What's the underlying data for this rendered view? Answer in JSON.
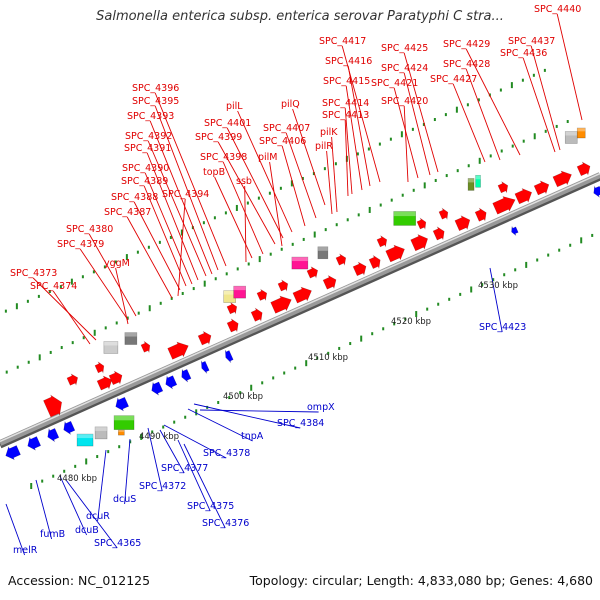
{
  "title": "Salmonella enterica subsp. enterica serovar Paratyphi C stra...",
  "footer": {
    "accession": "Accession: NC_012125",
    "summary": "Topology: circular; Length: 4,833,080 bp; Genes: 4,680"
  },
  "colors": {
    "forward_label": "#e00000",
    "reverse_label": "#0000cc",
    "forward_gene": "#ff0000",
    "reverse_gene": "#0000ff",
    "backbone": "#999999",
    "tick": "#228b22",
    "rna_pink": "#ff1493",
    "rna_green": "#33cc00",
    "pseudo_grey": "#777777",
    "orange": "#ff8c00",
    "cyan": "#00e5ee",
    "tan": "#f0e68c"
  },
  "scale_labels": [
    "4480 kbp",
    "4490 kbp",
    "4500 kbp",
    "4510 kbp",
    "4520 kbp",
    "4530 kbp"
  ],
  "forward_labels": [
    "SPC_4440",
    "SPC_4437",
    "SPC_4436",
    "SPC_4429",
    "SPC_4428",
    "SPC_4427",
    "SPC_4425",
    "SPC_4424",
    "SPC_4421",
    "SPC_4420",
    "SPC_4417",
    "SPC_4416",
    "SPC_4415",
    "SPC_4414",
    "SPC_4413",
    "pilQ",
    "pilK",
    "pilR",
    "SPC_4407",
    "SPC_4406",
    "pilL",
    "SPC_4401",
    "SPC_4399",
    "pilM",
    "SPC_4398",
    "topB",
    "ssb",
    "SPC_4396",
    "SPC_4395",
    "SPC_4393",
    "SPC_4392",
    "SPC_4391",
    "SPC_4390",
    "SPC_4389",
    "SPC_4388",
    "SPC_4394",
    "SPC_4387",
    "SPC_4380",
    "SPC_4379",
    "yggM",
    "SPC_4373",
    "SPC_4374"
  ],
  "reverse_labels": [
    "ompX",
    "SPC_4384",
    "tnpA",
    "SPC_4378",
    "SPC_4377",
    "SPC_4372",
    "SPC_4375",
    "SPC_4376",
    "dcuS",
    "dcuR",
    "fumB",
    "dcuB",
    "SPC_4365",
    "melR",
    "SPC_4423"
  ]
}
